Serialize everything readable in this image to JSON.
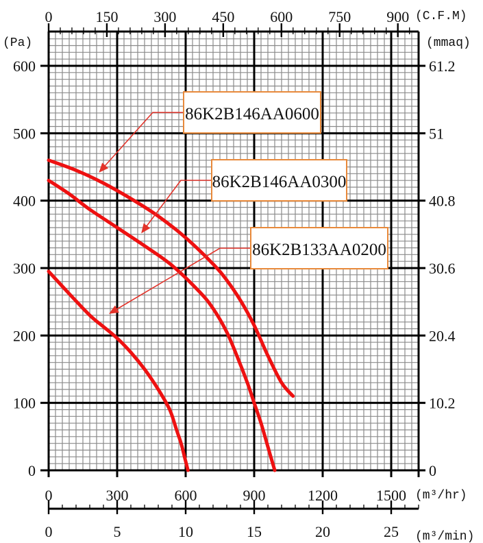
{
  "chart_data": {
    "type": "line",
    "title": "",
    "x_primary": {
      "unit": "(m³/hr)",
      "range": [
        0,
        1620
      ],
      "ticks": [
        "0",
        "300",
        "600",
        "900",
        "1200",
        "1500"
      ],
      "tick_values": [
        0,
        300,
        600,
        900,
        1200,
        1500
      ]
    },
    "x_top": {
      "unit": "(C.F.M)",
      "ticks": [
        "0",
        "150",
        "300",
        "450",
        "600",
        "750",
        "900"
      ],
      "tick_values": [
        0,
        150,
        300,
        450,
        600,
        750,
        900
      ]
    },
    "x_bottom": {
      "unit": "(m³/min)",
      "ticks": [
        "0",
        "5",
        "10",
        "15",
        "20",
        "25"
      ],
      "tick_values": [
        0,
        5,
        10,
        15,
        20,
        25
      ]
    },
    "y_primary": {
      "unit": "(Pa)",
      "range": [
        0,
        600
      ],
      "ticks": [
        "0",
        "100",
        "200",
        "300",
        "400",
        "500",
        "600"
      ],
      "tick_values": [
        0,
        100,
        200,
        300,
        400,
        500,
        600
      ]
    },
    "y_right": {
      "unit": "(mmaq)",
      "ticks": [
        "0",
        "10.2",
        "20.4",
        "30.6",
        "40.8",
        "51",
        "61.2"
      ],
      "tick_values": [
        0,
        100,
        200,
        300,
        400,
        500,
        600
      ]
    },
    "grid": true,
    "series": [
      {
        "name": "86K2B146AA0600",
        "color": "#ee1111",
        "x": [
          0,
          120,
          240,
          360,
          480,
          600,
          720,
          780,
          840,
          900,
          960,
          1020,
          1070
        ],
        "y": [
          460,
          445,
          426,
          403,
          377,
          345,
          306,
          282,
          252,
          215,
          170,
          130,
          110
        ]
      },
      {
        "name": "86K2B146AA0300",
        "color": "#ee1111",
        "x": [
          0,
          90,
          180,
          300,
          420,
          540,
          660,
          720,
          780,
          830,
          870,
          900,
          930,
          960,
          990
        ],
        "y": [
          430,
          410,
          387,
          360,
          333,
          304,
          265,
          240,
          205,
          165,
          130,
          100,
          70,
          35,
          0
        ]
      },
      {
        "name": "86K2B133AA0200",
        "color": "#ee1111",
        "x": [
          0,
          90,
          180,
          240,
          300,
          360,
          420,
          480,
          530,
          560,
          580,
          595,
          610
        ],
        "y": [
          295,
          262,
          230,
          213,
          196,
          175,
          150,
          120,
          90,
          60,
          40,
          20,
          0
        ]
      }
    ],
    "callouts": [
      {
        "label": "86K2B146AA0600",
        "series": 0,
        "target_x": 200,
        "target_y": 435
      },
      {
        "label": "86K2B146AA0300",
        "series": 1,
        "target_x": 385,
        "target_y": 345
      },
      {
        "label": "86K2B133AA0200",
        "series": 2,
        "target_x": 245,
        "target_y": 225
      }
    ]
  }
}
